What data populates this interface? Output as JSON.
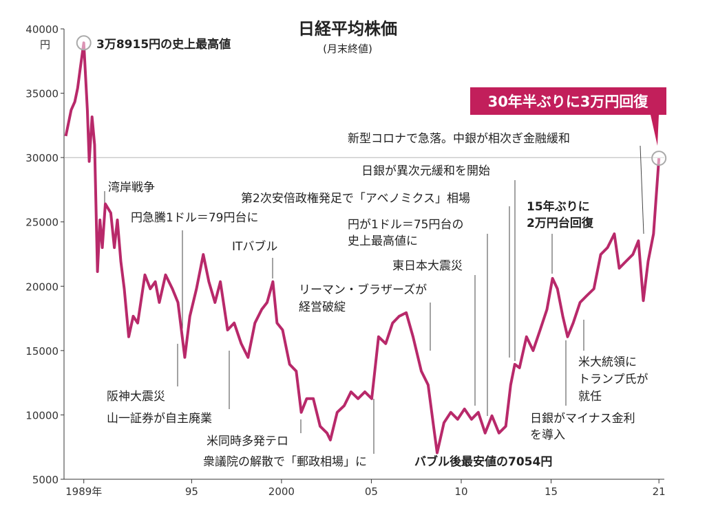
{
  "chart_data": {
    "type": "line",
    "title": "日経平均株価",
    "subtitle": "(月末終値)",
    "y_unit": "円",
    "color": "#b8296a",
    "xlim": [
      1987.9,
      2021.3
    ],
    "ylim": [
      5000,
      40000
    ],
    "xticks": [
      {
        "value": 1989,
        "label": "1989年"
      },
      {
        "value": 1995,
        "label": "95"
      },
      {
        "value": 2000,
        "label": "2000"
      },
      {
        "value": 2005,
        "label": "05"
      },
      {
        "value": 2010,
        "label": "10"
      },
      {
        "value": 2015,
        "label": "15"
      },
      {
        "value": 2021,
        "label": "21"
      }
    ],
    "yticks": [
      5000,
      10000,
      15000,
      20000,
      25000,
      30000,
      35000,
      40000
    ],
    "hline": 30000,
    "x": [
      1988.0,
      1988.3,
      1988.5,
      1988.66,
      1988.8,
      1989.0,
      1989.2,
      1989.3,
      1989.46,
      1989.6,
      1989.76,
      1989.9,
      1990.03,
      1990.2,
      1990.5,
      1990.7,
      1990.87,
      1991.06,
      1991.25,
      1991.5,
      1991.75,
      1992.0,
      1992.4,
      1992.7,
      1992.98,
      1993.2,
      1993.55,
      1993.93,
      1994.24,
      1994.43,
      1994.62,
      1994.9,
      1995.27,
      1995.65,
      1995.96,
      1996.3,
      1996.6,
      1997.0,
      1997.37,
      1997.76,
      1998.14,
      1998.52,
      1998.9,
      1999.2,
      1999.52,
      1999.75,
      2000.06,
      2000.45,
      2000.82,
      2001.1,
      2001.4,
      2001.77,
      2002.15,
      2002.53,
      2002.72,
      2003.1,
      2003.49,
      2003.87,
      2004.26,
      2004.64,
      2005.02,
      2005.4,
      2005.8,
      2006.18,
      2006.55,
      2006.94,
      2007.32,
      2007.78,
      2008.16,
      2008.46,
      2008.66,
      2009.04,
      2009.42,
      2009.8,
      2010.18,
      2010.57,
      2010.95,
      2011.33,
      2011.71,
      2012.1,
      2012.48,
      2012.75,
      2012.98,
      2013.24,
      2013.63,
      2014.0,
      2014.39,
      2014.77,
      2015.08,
      2015.35,
      2015.65,
      2015.92,
      2016.23,
      2016.61,
      2016.99,
      2017.38,
      2017.76,
      2018.14,
      2018.52,
      2018.79,
      2019.17,
      2019.55,
      2019.86,
      2020.13,
      2020.4,
      2020.7,
      2020.89,
      2021.0
    ],
    "values": [
      31670,
      33700,
      34340,
      35400,
      36900,
      38915,
      33700,
      29700,
      33160,
      31000,
      21140,
      25150,
      23000,
      26400,
      25700,
      23000,
      25150,
      21940,
      19800,
      16070,
      17670,
      17140,
      20880,
      19800,
      20350,
      18740,
      20880,
      19800,
      18740,
      16600,
      14470,
      17670,
      19800,
      22470,
      20350,
      18740,
      20350,
      16600,
      17140,
      15540,
      14470,
      17140,
      18200,
      18740,
      20350,
      17140,
      16600,
      13930,
      13400,
      10200,
      11260,
      11260,
      9120,
      8590,
      8050,
      10200,
      10720,
      11790,
      11260,
      11790,
      11260,
      16070,
      15540,
      17140,
      17670,
      17940,
      16070,
      13400,
      12330,
      9120,
      7054,
      9390,
      10200,
      9660,
      10460,
      9660,
      10200,
      8590,
      9930,
      8590,
      9120,
      12330,
      13930,
      13660,
      16070,
      15000,
      16600,
      18200,
      20610,
      19800,
      17670,
      16070,
      17140,
      18740,
      19270,
      19800,
      22470,
      23000,
      24070,
      21400,
      21940,
      22470,
      23530,
      18880,
      21940,
      24070,
      27800,
      29950
    ],
    "annotations": [
      [
        "3万8915円の史上最高値"
      ],
      [
        "湾岸戦争"
      ],
      [
        "円急騰1ドル＝79円台に"
      ],
      [
        "ITバブル"
      ],
      [
        "第2次安倍政権発足で「アベノミクス」相場"
      ],
      [
        "円が1ドル＝75円台の",
        "史上最高値に"
      ],
      [
        "リーマン・ブラザーズが",
        "経営破綻"
      ],
      [
        "東日本大震災"
      ],
      [
        "日銀が異次元緩和を開始"
      ],
      [
        "新型コロナで急落。中銀が相次ぎ金融緩和"
      ],
      [
        "15年ぶりに",
        "2万円台回復"
      ],
      [
        "阪神大震災"
      ],
      [
        "山一証券が自主廃業"
      ],
      [
        "米同時多発テロ"
      ],
      [
        "衆議院の解散で「郵政相場」に"
      ],
      [
        "バブル後最安値の7054円"
      ],
      [
        "日銀がマイナス金利",
        "を導入"
      ],
      [
        "米大統領に",
        "トランプ氏が",
        "就任"
      ]
    ],
    "highlight": "30年半ぶりに3万円回復"
  }
}
